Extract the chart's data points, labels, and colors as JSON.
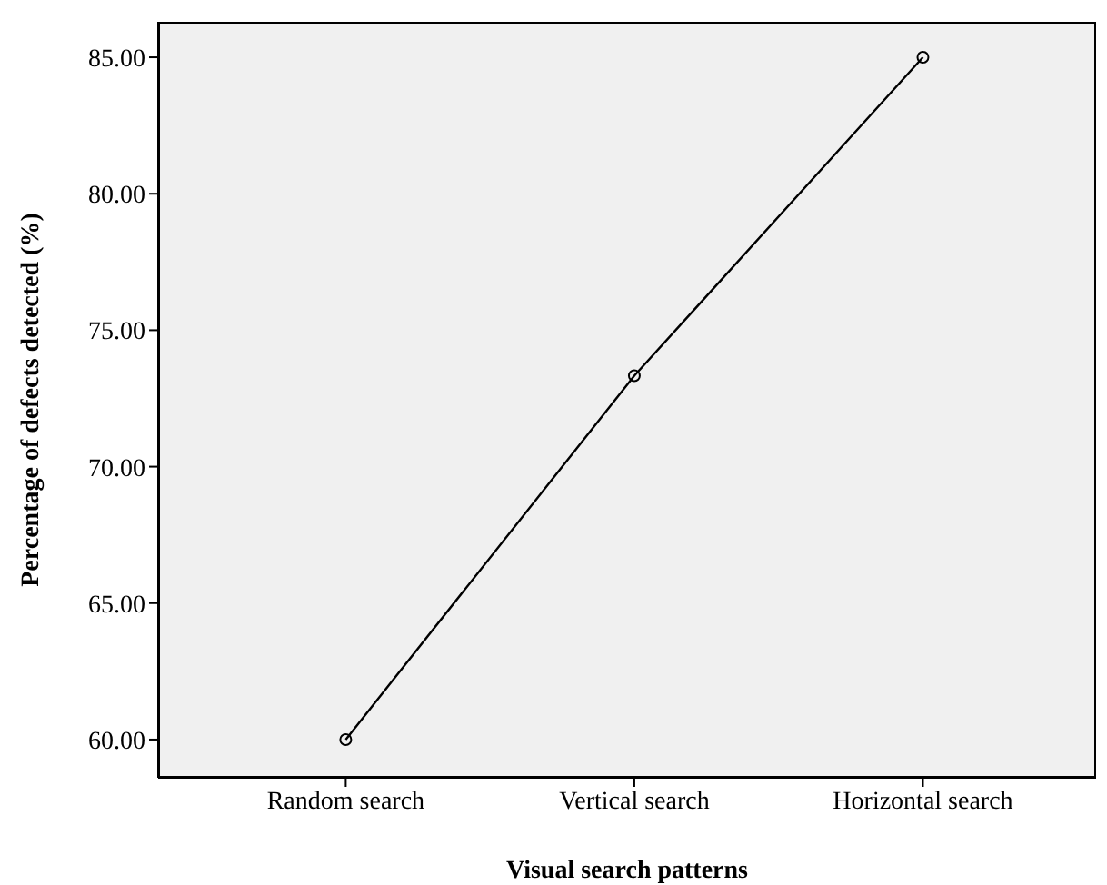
{
  "chart_data": {
    "type": "line",
    "xlabel": "Visual search patterns",
    "ylabel": "Percentage of defects detected (%)",
    "categories": [
      "Random search",
      "Vertical search",
      "Horizontal search"
    ],
    "series": [
      {
        "color": "#000000",
        "values": [
          60.0,
          73.33,
          85.0
        ]
      }
    ],
    "ylim": [
      58.6,
      86.3
    ],
    "yticks": [
      {
        "value": 60,
        "label": "60.00"
      },
      {
        "value": 65,
        "label": "65.00"
      },
      {
        "value": 70,
        "label": "70.00"
      },
      {
        "value": 75,
        "label": "75.00"
      },
      {
        "value": 80,
        "label": "80.00"
      },
      {
        "value": 85,
        "label": "85.00"
      }
    ],
    "marker": "circle",
    "line_style": "solid",
    "grid": false,
    "legend": false
  }
}
